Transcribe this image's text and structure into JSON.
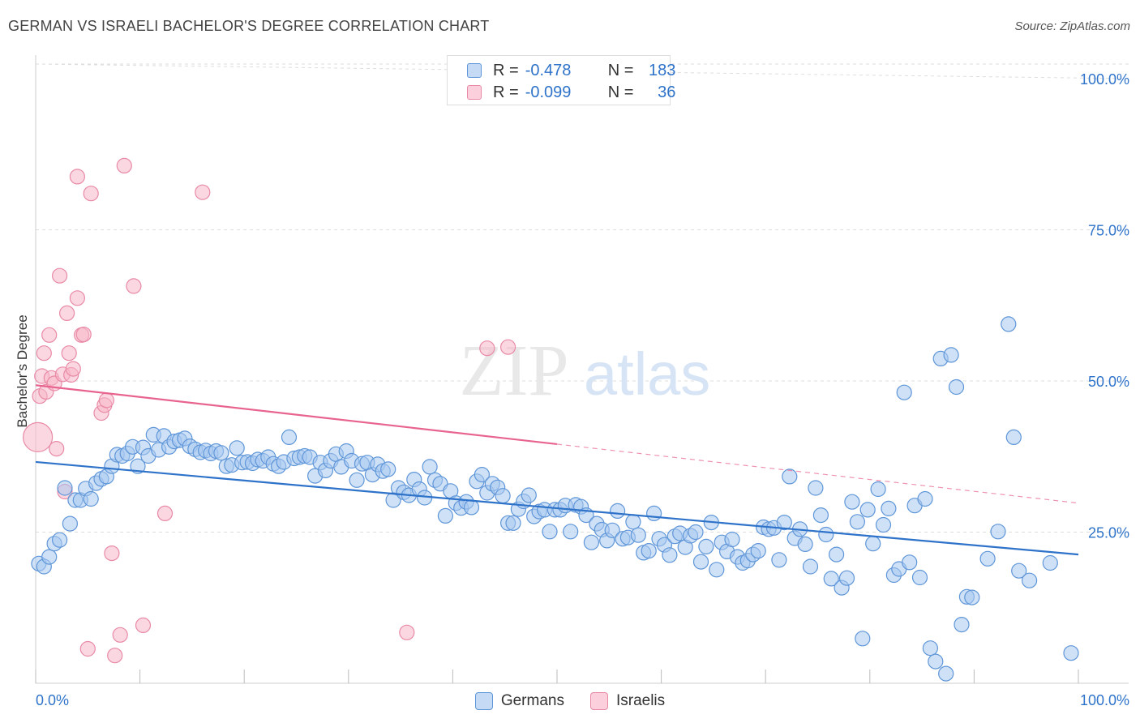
{
  "title": "GERMAN VS ISRAELI BACHELOR'S DEGREE CORRELATION CHART",
  "source": "Source: ZipAtlas.com",
  "watermark": {
    "zip": "ZIP",
    "atlas": "atlas"
  },
  "legend_top": [
    {
      "r_label": "R =",
      "r_value": "-0.478",
      "n_label": "N =",
      "n_value": "183"
    },
    {
      "r_label": "R =",
      "r_value": "-0.099",
      "n_label": "N =",
      "n_value": "36"
    }
  ],
  "legend_bottom": [
    "Germans",
    "Israelis"
  ],
  "colors": {
    "germans_fill": "#a8c8f0",
    "germans_stroke": "#5f96d8",
    "germans_line": "#2e73c9",
    "israelis_fill": "#f8b6c8",
    "israelis_stroke": "#e88aa6",
    "israelis_line": "#e8648f",
    "tick_label": "#2e73c9",
    "grid": "#dddddd"
  },
  "chart_data": {
    "type": "scatter",
    "title": "GERMAN VS ISRAELI BACHELOR'S DEGREE CORRELATION CHART",
    "xlabel": "",
    "ylabel": "Bachelor's Degree",
    "xlim": [
      0,
      100
    ],
    "ylim": [
      0,
      100
    ],
    "x_tick_labels": [
      "0.0%",
      "100.0%"
    ],
    "y_tick_labels": [
      "100.0%",
      "75.0%",
      "50.0%",
      "25.0%"
    ],
    "y_ticks": [
      100,
      75,
      50,
      25
    ],
    "grid": true,
    "series": [
      {
        "name": "Germans",
        "R": -0.478,
        "N": 183,
        "trend": {
          "x": [
            0,
            100
          ],
          "y": [
            36.6,
            21.3
          ],
          "dashed_from": null
        },
        "points": [
          [
            0.3,
            19.8
          ],
          [
            0.8,
            19.3
          ],
          [
            1.3,
            20.9
          ],
          [
            1.8,
            23.1
          ],
          [
            2.3,
            23.7
          ],
          [
            2.8,
            32.3
          ],
          [
            3.3,
            26.4
          ],
          [
            3.8,
            30.3
          ],
          [
            4.3,
            30.3
          ],
          [
            4.8,
            32.2
          ],
          [
            5.3,
            30.5
          ],
          [
            5.8,
            33.1
          ],
          [
            6.3,
            33.8
          ],
          [
            6.8,
            34.2
          ],
          [
            7.3,
            35.9
          ],
          [
            7.8,
            37.8
          ],
          [
            8.3,
            37.6
          ],
          [
            8.8,
            38.0
          ],
          [
            9.3,
            39.1
          ],
          [
            9.8,
            35.9
          ],
          [
            10.3,
            39.0
          ],
          [
            10.8,
            37.6
          ],
          [
            11.3,
            41.1
          ],
          [
            11.8,
            38.6
          ],
          [
            12.3,
            40.9
          ],
          [
            12.8,
            39.1
          ],
          [
            13.3,
            40.0
          ],
          [
            13.8,
            40.2
          ],
          [
            14.3,
            40.5
          ],
          [
            14.8,
            39.2
          ],
          [
            15.3,
            38.7
          ],
          [
            15.8,
            38.2
          ],
          [
            16.3,
            38.5
          ],
          [
            16.8,
            38.0
          ],
          [
            17.3,
            38.4
          ],
          [
            17.8,
            38.1
          ],
          [
            18.3,
            35.9
          ],
          [
            18.8,
            36.1
          ],
          [
            19.3,
            38.9
          ],
          [
            19.8,
            36.5
          ],
          [
            20.3,
            36.6
          ],
          [
            20.8,
            36.4
          ],
          [
            21.3,
            37.0
          ],
          [
            21.8,
            36.8
          ],
          [
            22.3,
            37.4
          ],
          [
            22.8,
            36.3
          ],
          [
            23.3,
            35.9
          ],
          [
            23.8,
            36.6
          ],
          [
            24.3,
            40.7
          ],
          [
            24.8,
            37.2
          ],
          [
            25.3,
            37.4
          ],
          [
            25.8,
            37.6
          ],
          [
            26.3,
            37.4
          ],
          [
            26.8,
            34.3
          ],
          [
            27.3,
            36.5
          ],
          [
            27.8,
            35.2
          ],
          [
            28.3,
            36.8
          ],
          [
            28.8,
            37.9
          ],
          [
            29.3,
            35.8
          ],
          [
            29.8,
            38.4
          ],
          [
            30.3,
            36.8
          ],
          [
            30.8,
            33.6
          ],
          [
            31.3,
            36.3
          ],
          [
            31.8,
            36.5
          ],
          [
            32.3,
            34.5
          ],
          [
            32.8,
            36.2
          ],
          [
            33.3,
            35.1
          ],
          [
            33.8,
            35.4
          ],
          [
            34.3,
            30.3
          ],
          [
            34.8,
            32.3
          ],
          [
            35.3,
            31.6
          ],
          [
            35.8,
            31.1
          ],
          [
            36.3,
            33.7
          ],
          [
            36.8,
            32.1
          ],
          [
            37.3,
            30.7
          ],
          [
            37.8,
            35.8
          ],
          [
            38.3,
            33.6
          ],
          [
            38.8,
            33.0
          ],
          [
            39.3,
            27.7
          ],
          [
            39.8,
            31.8
          ],
          [
            40.3,
            29.8
          ],
          [
            40.8,
            29.0
          ],
          [
            41.3,
            30.0
          ],
          [
            41.8,
            29.1
          ],
          [
            42.3,
            33.4
          ],
          [
            42.8,
            34.5
          ],
          [
            43.3,
            31.5
          ],
          [
            43.8,
            33.0
          ],
          [
            44.3,
            32.4
          ],
          [
            44.8,
            31.0
          ],
          [
            45.3,
            26.5
          ],
          [
            45.8,
            26.5
          ],
          [
            46.3,
            28.8
          ],
          [
            46.8,
            30.1
          ],
          [
            47.3,
            31.1
          ],
          [
            47.8,
            27.6
          ],
          [
            48.3,
            28.4
          ],
          [
            48.8,
            28.7
          ],
          [
            49.3,
            25.1
          ],
          [
            49.8,
            28.7
          ],
          [
            50.3,
            28.7
          ],
          [
            50.8,
            29.4
          ],
          [
            51.3,
            25.1
          ],
          [
            51.8,
            29.5
          ],
          [
            52.3,
            29.2
          ],
          [
            52.8,
            27.8
          ],
          [
            53.3,
            23.3
          ],
          [
            53.8,
            26.4
          ],
          [
            54.3,
            25.4
          ],
          [
            54.8,
            23.6
          ],
          [
            55.3,
            25.3
          ],
          [
            55.8,
            28.5
          ],
          [
            56.3,
            23.9
          ],
          [
            56.8,
            24.1
          ],
          [
            57.3,
            26.7
          ],
          [
            57.8,
            24.5
          ],
          [
            58.3,
            21.6
          ],
          [
            58.8,
            21.9
          ],
          [
            59.3,
            28.1
          ],
          [
            59.8,
            23.9
          ],
          [
            60.3,
            22.9
          ],
          [
            60.8,
            21.2
          ],
          [
            61.3,
            24.3
          ],
          [
            61.8,
            24.8
          ],
          [
            62.3,
            22.5
          ],
          [
            62.8,
            24.4
          ],
          [
            63.3,
            25.0
          ],
          [
            63.8,
            20.1
          ],
          [
            64.3,
            22.6
          ],
          [
            64.8,
            26.6
          ],
          [
            65.3,
            18.8
          ],
          [
            65.8,
            23.3
          ],
          [
            66.3,
            21.8
          ],
          [
            66.8,
            23.8
          ],
          [
            67.3,
            20.9
          ],
          [
            67.8,
            19.9
          ],
          [
            68.3,
            20.3
          ],
          [
            68.8,
            21.3
          ],
          [
            69.3,
            21.9
          ],
          [
            69.8,
            25.8
          ],
          [
            70.3,
            25.5
          ],
          [
            70.8,
            25.7
          ],
          [
            71.3,
            20.4
          ],
          [
            71.8,
            26.6
          ],
          [
            72.3,
            34.2
          ],
          [
            72.8,
            24.0
          ],
          [
            73.3,
            25.5
          ],
          [
            73.8,
            23.0
          ],
          [
            74.3,
            19.3
          ],
          [
            74.8,
            32.3
          ],
          [
            75.3,
            27.8
          ],
          [
            75.8,
            24.6
          ],
          [
            76.3,
            17.3
          ],
          [
            76.8,
            21.3
          ],
          [
            77.3,
            15.8
          ],
          [
            77.8,
            17.4
          ],
          [
            78.3,
            30.0
          ],
          [
            78.8,
            26.7
          ],
          [
            79.3,
            7.4
          ],
          [
            79.8,
            28.7
          ],
          [
            80.3,
            23.1
          ],
          [
            80.8,
            32.1
          ],
          [
            81.3,
            26.2
          ],
          [
            81.8,
            28.9
          ],
          [
            82.3,
            17.9
          ],
          [
            82.8,
            18.9
          ],
          [
            83.3,
            48.1
          ],
          [
            83.8,
            20.0
          ],
          [
            84.3,
            29.4
          ],
          [
            84.8,
            17.5
          ],
          [
            85.3,
            30.5
          ],
          [
            85.8,
            5.8
          ],
          [
            86.3,
            3.6
          ],
          [
            86.8,
            53.7
          ],
          [
            87.3,
            1.6
          ],
          [
            87.8,
            54.3
          ],
          [
            88.3,
            49.0
          ],
          [
            88.8,
            9.7
          ],
          [
            89.3,
            14.3
          ],
          [
            89.8,
            14.2
          ],
          [
            91.3,
            20.6
          ],
          [
            92.3,
            25.1
          ],
          [
            93.3,
            59.4
          ],
          [
            93.8,
            40.7
          ],
          [
            94.3,
            18.6
          ],
          [
            95.3,
            17.0
          ],
          [
            97.3,
            19.9
          ],
          [
            99.3,
            5.0
          ]
        ]
      },
      {
        "name": "Israelis",
        "R": -0.099,
        "N": 36,
        "trend": {
          "x": [
            0,
            100
          ],
          "y": [
            49.3,
            29.8
          ],
          "dashed_from": 50
        },
        "points": [
          [
            0.2,
            40.7
          ],
          [
            0.4,
            47.5
          ],
          [
            0.6,
            50.8
          ],
          [
            0.8,
            54.6
          ],
          [
            1.0,
            48.2
          ],
          [
            1.3,
            57.6
          ],
          [
            1.5,
            50.5
          ],
          [
            1.8,
            49.6
          ],
          [
            2.0,
            38.8
          ],
          [
            2.3,
            67.4
          ],
          [
            2.6,
            51.1
          ],
          [
            2.8,
            31.7
          ],
          [
            3.0,
            61.2
          ],
          [
            3.2,
            54.6
          ],
          [
            3.4,
            51.0
          ],
          [
            3.6,
            52.0
          ],
          [
            4.0,
            83.8
          ],
          [
            4.0,
            63.7
          ],
          [
            4.4,
            57.6
          ],
          [
            4.6,
            57.7
          ],
          [
            5.0,
            5.7
          ],
          [
            5.3,
            81.0
          ],
          [
            6.3,
            44.7
          ],
          [
            6.6,
            46.0
          ],
          [
            6.8,
            46.8
          ],
          [
            7.3,
            21.5
          ],
          [
            7.6,
            4.6
          ],
          [
            8.1,
            8.0
          ],
          [
            8.5,
            85.6
          ],
          [
            9.4,
            65.7
          ],
          [
            10.3,
            9.6
          ],
          [
            12.4,
            28.1
          ],
          [
            16.0,
            81.2
          ],
          [
            35.6,
            8.4
          ],
          [
            43.3,
            55.4
          ],
          [
            45.3,
            55.6
          ]
        ]
      }
    ]
  }
}
